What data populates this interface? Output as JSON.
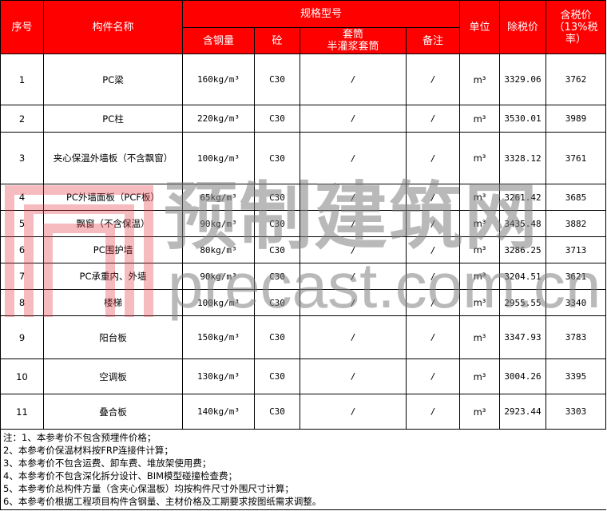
{
  "header": {
    "index": "序号",
    "name": "构件名称",
    "spec": "规格型号",
    "steel": "含钢量",
    "concrete": "砼",
    "sleeve": "套筒\n半灌浆套筒",
    "remark": "备注",
    "unit": "单位",
    "price_ex": "除税价",
    "price_inc": "含税价（13%税率）"
  },
  "rows": [
    {
      "index": "1",
      "name": "PC梁",
      "steel": "160kg/m³",
      "concrete": "C30",
      "sleeve": "/",
      "remark": "/",
      "unit": "m³",
      "price_ex": "3329.06",
      "price_inc": "3762"
    },
    {
      "index": "2",
      "name": "PC柱",
      "steel": "220kg/m³",
      "concrete": "C30",
      "sleeve": "/",
      "remark": "/",
      "unit": "m³",
      "price_ex": "3530.01",
      "price_inc": "3989"
    },
    {
      "index": "3",
      "name": "夹心保温外墙板（不含飘窗）",
      "steel": "100kg/m³",
      "concrete": "C30",
      "sleeve": "/",
      "remark": "/",
      "unit": "m³",
      "price_ex": "3328.12",
      "price_inc": "3761"
    },
    {
      "index": "4",
      "name": "PC外墙面板（PCF板）",
      "steel": "65kg/m³",
      "concrete": "C30",
      "sleeve": "/",
      "remark": "/",
      "unit": "m³",
      "price_ex": "3261.42",
      "price_inc": "3685"
    },
    {
      "index": "5",
      "name": "飘窗（不含保温）",
      "steel": "90kg/m³",
      "concrete": "C30",
      "sleeve": "/",
      "remark": "/",
      "unit": "m³",
      "price_ex": "3435.48",
      "price_inc": "3882"
    },
    {
      "index": "6",
      "name": "PC围护墙",
      "steel": "80kg/m³",
      "concrete": "C30",
      "sleeve": "/",
      "remark": "/",
      "unit": "m³",
      "price_ex": "3286.25",
      "price_inc": "3713"
    },
    {
      "index": "7",
      "name": "PC承重内、外墙",
      "steel": "90kg/m³",
      "concrete": "C30",
      "sleeve": "/",
      "remark": "/",
      "unit": "m³",
      "price_ex": "3204.51",
      "price_inc": "3621"
    },
    {
      "index": "8",
      "name": "楼梯",
      "steel": "100kg/m³",
      "concrete": "C30",
      "sleeve": "/",
      "remark": "/",
      "unit": "m³",
      "price_ex": "2955.55",
      "price_inc": "3340"
    },
    {
      "index": "9",
      "name": "阳台板",
      "steel": "150kg/m³",
      "concrete": "C30",
      "sleeve": "/",
      "remark": "/",
      "unit": "m³",
      "price_ex": "3347.93",
      "price_inc": "3783"
    },
    {
      "index": "10",
      "name": "空调板",
      "steel": "130kg/m³",
      "concrete": "C30",
      "sleeve": "/",
      "remark": "/",
      "unit": "m³",
      "price_ex": "3004.26",
      "price_inc": "3395"
    },
    {
      "index": "11",
      "name": "叠合板",
      "steel": "140kg/m³",
      "concrete": "C30",
      "sleeve": "/",
      "remark": "/",
      "unit": "m³",
      "price_ex": "2923.44",
      "price_inc": "3303"
    }
  ],
  "notes": [
    "注：1、本参考价不包含预埋件价格；",
    "2、本参考价保温材料按FRP连接件计算；",
    "3、本参考价不包含运费、卸车费、堆放架使用费；",
    "4、本参考价不包含深化拆分设计、BIM模型碰撞检查费；",
    "5、本参考价总构件方量（含夹心保温板）均按构件尺寸外围尺寸计算；",
    "6、本参考价根据工程项目构件含钢量、主材价格及工期要求按图纸需求调整。"
  ],
  "watermark": {
    "cn": "预制建筑网",
    "en": "precast.com.cn"
  },
  "colors": {
    "header_bg": "#ff0000",
    "header_text": "#ffffff"
  }
}
